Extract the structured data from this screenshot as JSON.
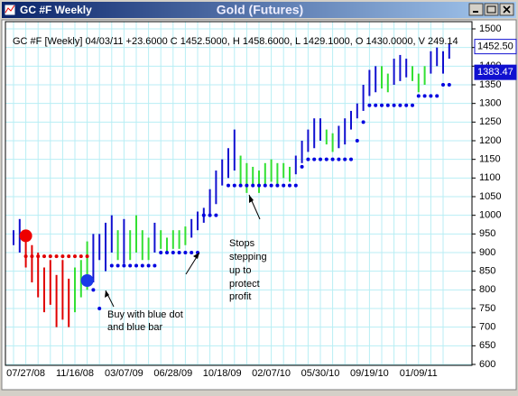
{
  "window": {
    "title": "GC #F Weekly"
  },
  "chart_data": {
    "type": "ohlc",
    "title": "Gold (Futures)",
    "info": "GC #F [Weekly] 04/03/11  +23.6000 C 1452.5000, H 1458.6000, L 1429.1000, O 1430.0000, V 249.14",
    "categories": [
      null,
      null,
      "07/27/08",
      null,
      null,
      null,
      null,
      null,
      null,
      null,
      "11/16/08",
      null,
      null,
      null,
      null,
      null,
      null,
      null,
      "03/07/09",
      null,
      null,
      null,
      null,
      null,
      null,
      null,
      "06/28/09",
      null,
      null,
      null,
      null,
      null,
      null,
      null,
      "10/18/09",
      null,
      null,
      null,
      null,
      null,
      null,
      null,
      "02/07/10",
      null,
      null,
      null,
      null,
      null,
      null,
      null,
      "05/30/10",
      null,
      null,
      null,
      null,
      null,
      null,
      null,
      "09/19/10",
      null,
      null,
      null,
      null,
      null,
      null,
      null,
      "01/09/11",
      null,
      null,
      null,
      null,
      null
    ],
    "high": [
      960,
      990,
      950,
      920,
      900,
      860,
      880,
      840,
      880,
      830,
      860,
      880,
      930,
      950,
      950,
      980,
      1000,
      960,
      990,
      960,
      1000,
      960,
      940,
      980,
      960,
      940,
      960,
      960,
      970,
      990,
      1010,
      1020,
      1070,
      1120,
      1150,
      1180,
      1230,
      1160,
      1140,
      1130,
      1120,
      1140,
      1150,
      1140,
      1140,
      1130,
      1160,
      1200,
      1230,
      1260,
      1260,
      1230,
      1220,
      1240,
      1260,
      1280,
      1300,
      1350,
      1390,
      1400,
      1400,
      1380,
      1420,
      1430,
      1420,
      1400,
      1380,
      1400,
      1440,
      1450,
      1440,
      1460
    ],
    "low": [
      920,
      900,
      860,
      820,
      780,
      740,
      760,
      700,
      720,
      700,
      740,
      780,
      800,
      820,
      880,
      850,
      900,
      880,
      870,
      880,
      900,
      880,
      880,
      900,
      910,
      900,
      910,
      910,
      920,
      940,
      960,
      980,
      1000,
      1030,
      1080,
      1100,
      1120,
      1080,
      1060,
      1080,
      1060,
      1080,
      1090,
      1080,
      1100,
      1090,
      1110,
      1140,
      1170,
      1180,
      1200,
      1190,
      1170,
      1180,
      1190,
      1230,
      1260,
      1280,
      1320,
      1330,
      1340,
      1330,
      1350,
      1360,
      1370,
      1360,
      1330,
      1350,
      1380,
      1400,
      1380,
      1420
    ],
    "bar_colors": [
      "#1010d0",
      "#1010d0",
      "#e00000",
      "#e00000",
      "#e00000",
      "#e00000",
      "#e00000",
      "#e00000",
      "#e00000",
      "#e00000",
      "#33e033",
      "#33e033",
      "#33e033",
      "#1010d0",
      "#1010d0",
      "#1010d0",
      "#1010d0",
      "#33e033",
      "#1010d0",
      "#33e033",
      "#33e033",
      "#33e033",
      "#33e033",
      "#1010d0",
      "#33e033",
      "#33e033",
      "#33e033",
      "#33e033",
      "#33e033",
      "#1010d0",
      "#1010d0",
      "#1010d0",
      "#1010d0",
      "#1010d0",
      "#1010d0",
      "#1010d0",
      "#1010d0",
      "#33e033",
      "#33e033",
      "#33e033",
      "#33e033",
      "#33e033",
      "#33e033",
      "#33e033",
      "#33e033",
      "#33e033",
      "#1010d0",
      "#1010d0",
      "#1010d0",
      "#1010d0",
      "#1010d0",
      "#33e033",
      "#33e033",
      "#1010d0",
      "#1010d0",
      "#1010d0",
      "#1010d0",
      "#1010d0",
      "#1010d0",
      "#1010d0",
      "#33e033",
      "#33e033",
      "#1010d0",
      "#1010d0",
      "#1010d0",
      "#33e033",
      "#33e033",
      "#33e033",
      "#1010d0",
      "#1010d0",
      "#1010d0",
      "#1010d0"
    ],
    "stops": [
      {
        "color": "#e00000",
        "values": [
          null,
          null,
          890,
          890,
          890,
          890,
          890,
          890,
          890,
          890,
          890,
          890,
          890,
          null,
          null,
          null,
          null,
          null,
          null,
          null,
          null,
          null,
          null,
          null,
          null,
          null,
          null,
          null,
          null,
          null,
          null,
          null,
          null,
          null,
          null,
          null,
          null,
          null,
          null,
          null,
          null,
          null,
          null,
          null,
          null,
          null,
          null,
          null,
          null,
          null,
          null,
          null,
          null,
          null,
          null,
          null,
          null,
          null,
          null,
          null,
          null,
          null,
          null,
          null,
          null,
          null,
          null,
          null,
          null,
          null,
          null,
          null
        ]
      },
      {
        "color": "#0000e0",
        "values": [
          null,
          null,
          null,
          null,
          null,
          null,
          null,
          null,
          null,
          null,
          null,
          null,
          null,
          800,
          750,
          null,
          865,
          865,
          865,
          865,
          865,
          865,
          865,
          865,
          900,
          900,
          900,
          900,
          900,
          900,
          900,
          1000,
          1000,
          1000,
          null,
          1080,
          1080,
          1080,
          1080,
          1080,
          1080,
          1080,
          1080,
          1080,
          1080,
          1080,
          1080,
          1130,
          1150,
          1150,
          1150,
          1150,
          1150,
          1150,
          1150,
          1150,
          1200,
          1250,
          1295,
          1295,
          1295,
          1295,
          1295,
          1295,
          1295,
          1295,
          1320,
          1320,
          1320,
          1320,
          1350,
          1350
        ]
      }
    ],
    "signals": [
      {
        "index": 2,
        "value": 945,
        "color": "#ee0000"
      },
      {
        "index": 12,
        "value": 825,
        "color": "#1a3ae8"
      }
    ],
    "price_labels": {
      "values": [
        1452.5,
        1383.47
      ],
      "value_labels": [
        "1452.50",
        "1383.47"
      ]
    },
    "ylim": [
      600,
      1500
    ],
    "yticks": [
      600,
      650,
      700,
      750,
      800,
      850,
      900,
      950,
      1000,
      1050,
      1100,
      1150,
      1200,
      1250,
      1300,
      1350,
      1400,
      1450,
      1500
    ],
    "grid": true,
    "annotations": [
      {
        "lines": [
          "Buy with blue dot",
          "and blue bar"
        ]
      },
      {
        "lines": [
          "Stops",
          "stepping",
          "up to",
          "protect",
          "profit"
        ]
      }
    ]
  }
}
